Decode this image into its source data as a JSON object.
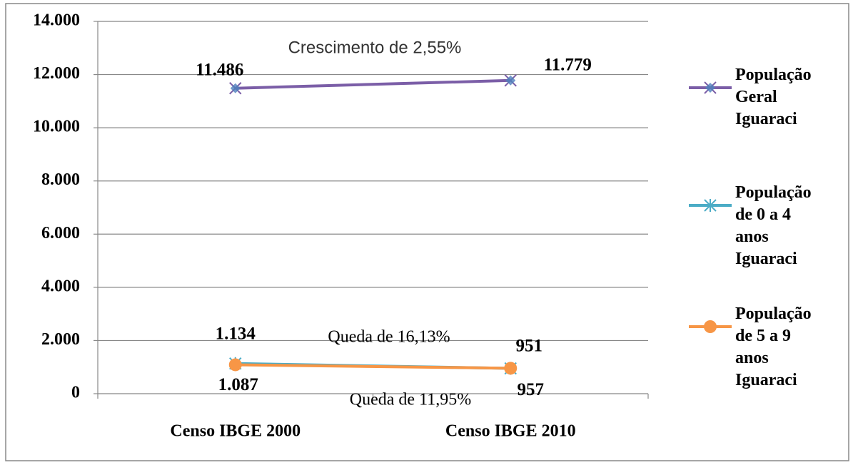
{
  "chart_data": {
    "type": "line",
    "categories": [
      "Censo IBGE 2000",
      "Censo IBGE 2010"
    ],
    "series": [
      {
        "name": "População Geral Iguaraci",
        "color": "#7b5ea7",
        "values": [
          11486,
          11779
        ],
        "value_labels": [
          "11.486",
          "11.779"
        ]
      },
      {
        "name": "População de 0 a 4 anos Iguaraci",
        "color": "#4bacc6",
        "values": [
          1134,
          951
        ],
        "value_labels": [
          "1.134",
          "951"
        ]
      },
      {
        "name": "População de 5 a 9 anos Iguaraci",
        "color": "#f79646",
        "values": [
          1087,
          957
        ],
        "value_labels": [
          "1.087",
          "957"
        ]
      }
    ],
    "annotations": [
      "Crescimento de 2,55%",
      "Queda de 16,13%",
      "Queda de 11,95%"
    ],
    "ylim": [
      0,
      14000
    ],
    "yticks": [
      0,
      {
        "value": 2000,
        "label": "2.000"
      },
      {
        "value": 4000,
        "label": "4.000"
      },
      {
        "value": 6000,
        "label": "6.000"
      },
      {
        "value": 8000,
        "label": "8.000"
      },
      {
        "value": 10000,
        "label": "10.000"
      },
      {
        "value": 12000,
        "label": "12.000"
      },
      {
        "value": 14000,
        "label": "14.000"
      }
    ],
    "grid": true,
    "legend": "right"
  }
}
